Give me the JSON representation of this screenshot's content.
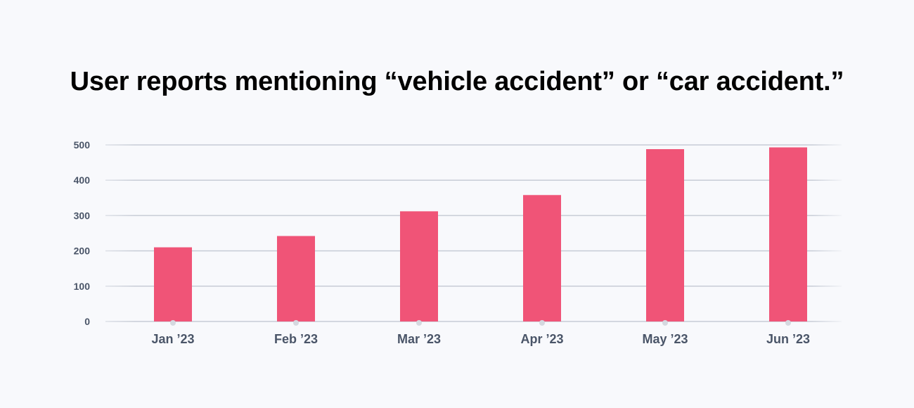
{
  "chart_data": {
    "type": "bar",
    "title": "User reports mentioning “vehicle accident” or “car accident.”",
    "categories": [
      "Jan ’23",
      "Feb ’23",
      "Mar ’23",
      "Apr ’23",
      "May ’23",
      "Jun ’23"
    ],
    "values": [
      210,
      242,
      312,
      358,
      488,
      493
    ],
    "xlabel": "",
    "ylabel": "",
    "ylim": [
      0,
      500
    ],
    "yticks": [
      "0",
      "100",
      "200",
      "300",
      "400",
      "500"
    ],
    "grid": true,
    "legend": "none",
    "colors": {
      "bar": "#f05477",
      "grid": "#c7ccd6",
      "tick_text": "#4a5568",
      "background": "#f8f9fc"
    }
  }
}
